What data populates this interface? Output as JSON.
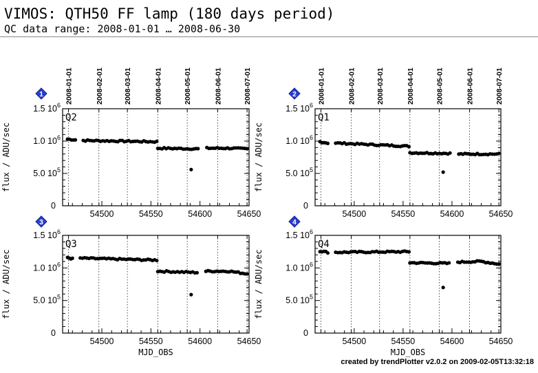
{
  "header": {
    "title": "VIMOS: QTH50 FF lamp (180 days period)",
    "subtitle": "QC data range: 2008-01-01 … 2008-06-30"
  },
  "footer": {
    "credit": "created by trendPlotter v2.0.2 on 2009-02-05T13:32:18"
  },
  "chart_data": [
    {
      "type": "scatter",
      "badge": "1",
      "label": "Q2",
      "xlabel": "",
      "ylabel": "flux / ADU/sec",
      "xlim": [
        54460,
        54650
      ],
      "ylim": [
        0,
        1500000
      ],
      "x_ticks": [
        "54500",
        "54550",
        "54600",
        "54650"
      ],
      "y_tick_labels": [
        "0",
        "5.0 10^5",
        "1.0 10^6",
        "1.5 10^6"
      ],
      "date_ticks": [
        "2008-01-01",
        "2008-02-01",
        "2008-03-01",
        "2008-04-01",
        "2008-05-01",
        "2008-06-01",
        "2008-07-01"
      ],
      "segments": [
        {
          "x0": 54465,
          "x1": 54473,
          "y0": 1030000,
          "y1": 1020000
        },
        {
          "x0": 54481,
          "x1": 54556,
          "y0": 1010000,
          "y1": 990000
        },
        {
          "x0": 54557,
          "x1": 54598,
          "y0": 890000,
          "y1": 880000
        },
        {
          "x0": 54607,
          "x1": 54628,
          "y0": 890000,
          "y1": 890000
        },
        {
          "x0": 54630,
          "x1": 54648,
          "y0": 890000,
          "y1": 880000
        }
      ],
      "outliers": [
        {
          "x": 54591,
          "y": 560000
        }
      ]
    },
    {
      "type": "scatter",
      "badge": "2",
      "label": "Q1",
      "xlabel": "",
      "ylabel": "flux / ADU/sec",
      "xlim": [
        54460,
        54650
      ],
      "ylim": [
        0,
        1500000
      ],
      "x_ticks": [
        "54500",
        "54550",
        "54600",
        "54650"
      ],
      "y_tick_labels": [
        "0",
        "5.0 10^5",
        "1.0 10^6",
        "1.5 10^6"
      ],
      "date_ticks": [
        "2008-01-01",
        "2008-02-01",
        "2008-03-01",
        "2008-04-01",
        "2008-05-01",
        "2008-06-01",
        "2008-07-01"
      ],
      "segments": [
        {
          "x0": 54465,
          "x1": 54473,
          "y0": 990000,
          "y1": 970000
        },
        {
          "x0": 54481,
          "x1": 54556,
          "y0": 970000,
          "y1": 920000
        },
        {
          "x0": 54557,
          "x1": 54598,
          "y0": 820000,
          "y1": 810000
        },
        {
          "x0": 54607,
          "x1": 54628,
          "y0": 800000,
          "y1": 800000
        },
        {
          "x0": 54630,
          "x1": 54648,
          "y0": 800000,
          "y1": 800000
        }
      ],
      "outliers": [
        {
          "x": 54591,
          "y": 520000
        }
      ]
    },
    {
      "type": "scatter",
      "badge": "3",
      "label": "Q3",
      "xlabel": "MJD_OBS",
      "ylabel": "flux / ADU/sec",
      "xlim": [
        54460,
        54650
      ],
      "ylim": [
        0,
        1500000
      ],
      "x_ticks": [
        "54500",
        "54550",
        "54600",
        "54650"
      ],
      "y_tick_labels": [
        "0",
        "5.0 10^5",
        "1.0 10^6",
        "1.5 10^6"
      ],
      "date_ticks": [],
      "segments": [
        {
          "x0": 54465,
          "x1": 54470,
          "y0": 1160000,
          "y1": 1140000
        },
        {
          "x0": 54478,
          "x1": 54556,
          "y0": 1150000,
          "y1": 1120000
        },
        {
          "x0": 54557,
          "x1": 54597,
          "y0": 950000,
          "y1": 930000
        },
        {
          "x0": 54606,
          "x1": 54628,
          "y0": 950000,
          "y1": 950000
        },
        {
          "x0": 54630,
          "x1": 54648,
          "y0": 950000,
          "y1": 910000
        }
      ],
      "outliers": [
        {
          "x": 54591,
          "y": 590000
        }
      ]
    },
    {
      "type": "scatter",
      "badge": "4",
      "label": "Q4",
      "xlabel": "MJD_OBS",
      "ylabel": "flux / ADU/sec",
      "xlim": [
        54460,
        54650
      ],
      "ylim": [
        0,
        1500000
      ],
      "x_ticks": [
        "54500",
        "54550",
        "54600",
        "54650"
      ],
      "y_tick_labels": [
        "0",
        "5.0 10^5",
        "1.0 10^6",
        "1.5 10^6"
      ],
      "date_ticks": [],
      "segments": [
        {
          "x0": 54465,
          "x1": 54473,
          "y0": 1260000,
          "y1": 1240000
        },
        {
          "x0": 54481,
          "x1": 54556,
          "y0": 1240000,
          "y1": 1250000
        },
        {
          "x0": 54557,
          "x1": 54597,
          "y0": 1080000,
          "y1": 1070000
        },
        {
          "x0": 54606,
          "x1": 54628,
          "y0": 1090000,
          "y1": 1100000
        },
        {
          "x0": 54630,
          "x1": 54648,
          "y0": 1100000,
          "y1": 1060000
        }
      ],
      "outliers": [
        {
          "x": 54591,
          "y": 700000
        }
      ]
    }
  ]
}
